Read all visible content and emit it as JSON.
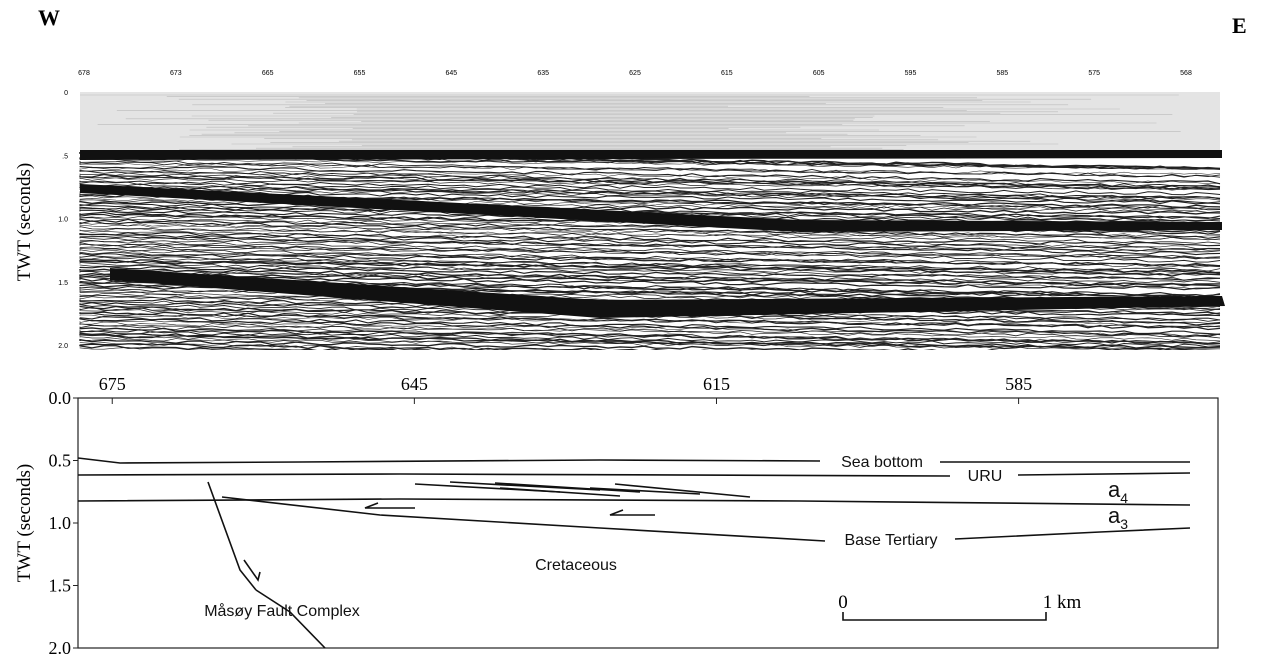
{
  "labels": {
    "west": "W",
    "east": "E"
  },
  "seismic": {
    "y_label": "TWT (seconds)",
    "shotpoints": [
      "678",
      "673",
      "665",
      "655",
      "645",
      "635",
      "625",
      "615",
      "605",
      "595",
      "585",
      "575",
      "568"
    ],
    "times": [
      "0",
      ".5",
      "1.0",
      "1.5",
      "2.0"
    ]
  },
  "interpretation": {
    "y_label": "TWT (seconds)",
    "xlim": [
      678.4,
      565.2
    ],
    "xticks": [
      675,
      645,
      615,
      585
    ],
    "ylim": [
      0,
      2
    ],
    "yticks": [
      {
        "value": 0,
        "label": "0.0"
      },
      {
        "value": 0.5,
        "label": "0.5"
      },
      {
        "value": 1,
        "label": "1.0"
      },
      {
        "value": 1.5,
        "label": "1.5"
      },
      {
        "value": 2,
        "label": "2.0"
      }
    ],
    "horizons": {
      "sea_bottom": "Sea bottom",
      "uru": "URU",
      "base_tertiary": "Base Tertiary"
    },
    "units": {
      "a4": {
        "base": "a",
        "sub": "4"
      },
      "a3": {
        "base": "a",
        "sub": "3"
      }
    },
    "cretaceous": "Cretaceous",
    "fault": "Måsøy Fault Complex",
    "scale": {
      "start": "0",
      "end": "1 km"
    }
  }
}
